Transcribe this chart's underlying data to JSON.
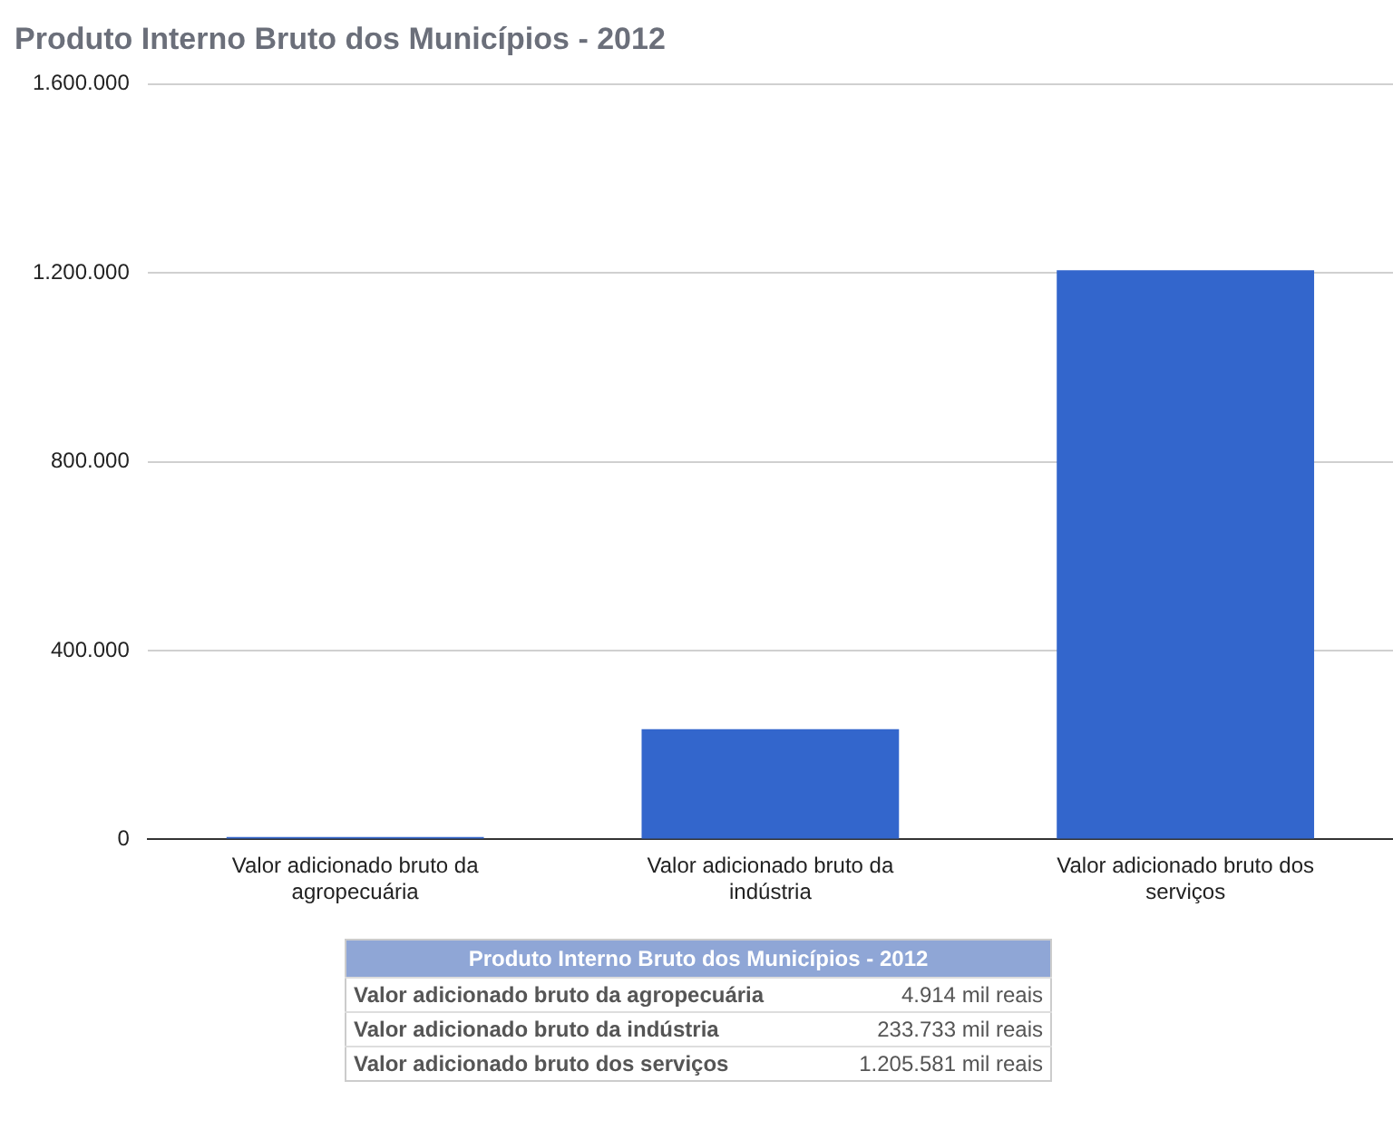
{
  "chart_data": [
    {
      "type": "bar",
      "title": "Produto Interno Bruto dos Municípios - 2012",
      "categories": [
        "Valor adicionado bruto da agropecuária",
        "Valor adicionado bruto da indústria",
        "Valor adicionado bruto dos serviços"
      ],
      "values": [
        4914,
        233733,
        1205581
      ],
      "color": "#3366cc",
      "ylim": [
        0,
        1600000
      ],
      "yticks": [
        0,
        {
          "value": 400000,
          "label": "400.000"
        },
        {
          "value": 800000,
          "label": "800.000"
        },
        {
          "value": 1200000,
          "label": "1.200.000"
        },
        {
          "value": 1600000,
          "label": "1.600.000"
        }
      ],
      "grid": "y",
      "legend": false
    },
    {
      "type": "other",
      "title": "Produto Interno Bruto dos Municípios - 2012",
      "categories": [
        "Valor adicionado bruto da agropecuária",
        "Valor adicionado bruto da indústria",
        "Valor adicionado bruto dos serviços"
      ],
      "annotations": [
        "4.914 mil reais",
        "233.733 mil reais",
        "1.205.581 mil reais"
      ]
    }
  ]
}
